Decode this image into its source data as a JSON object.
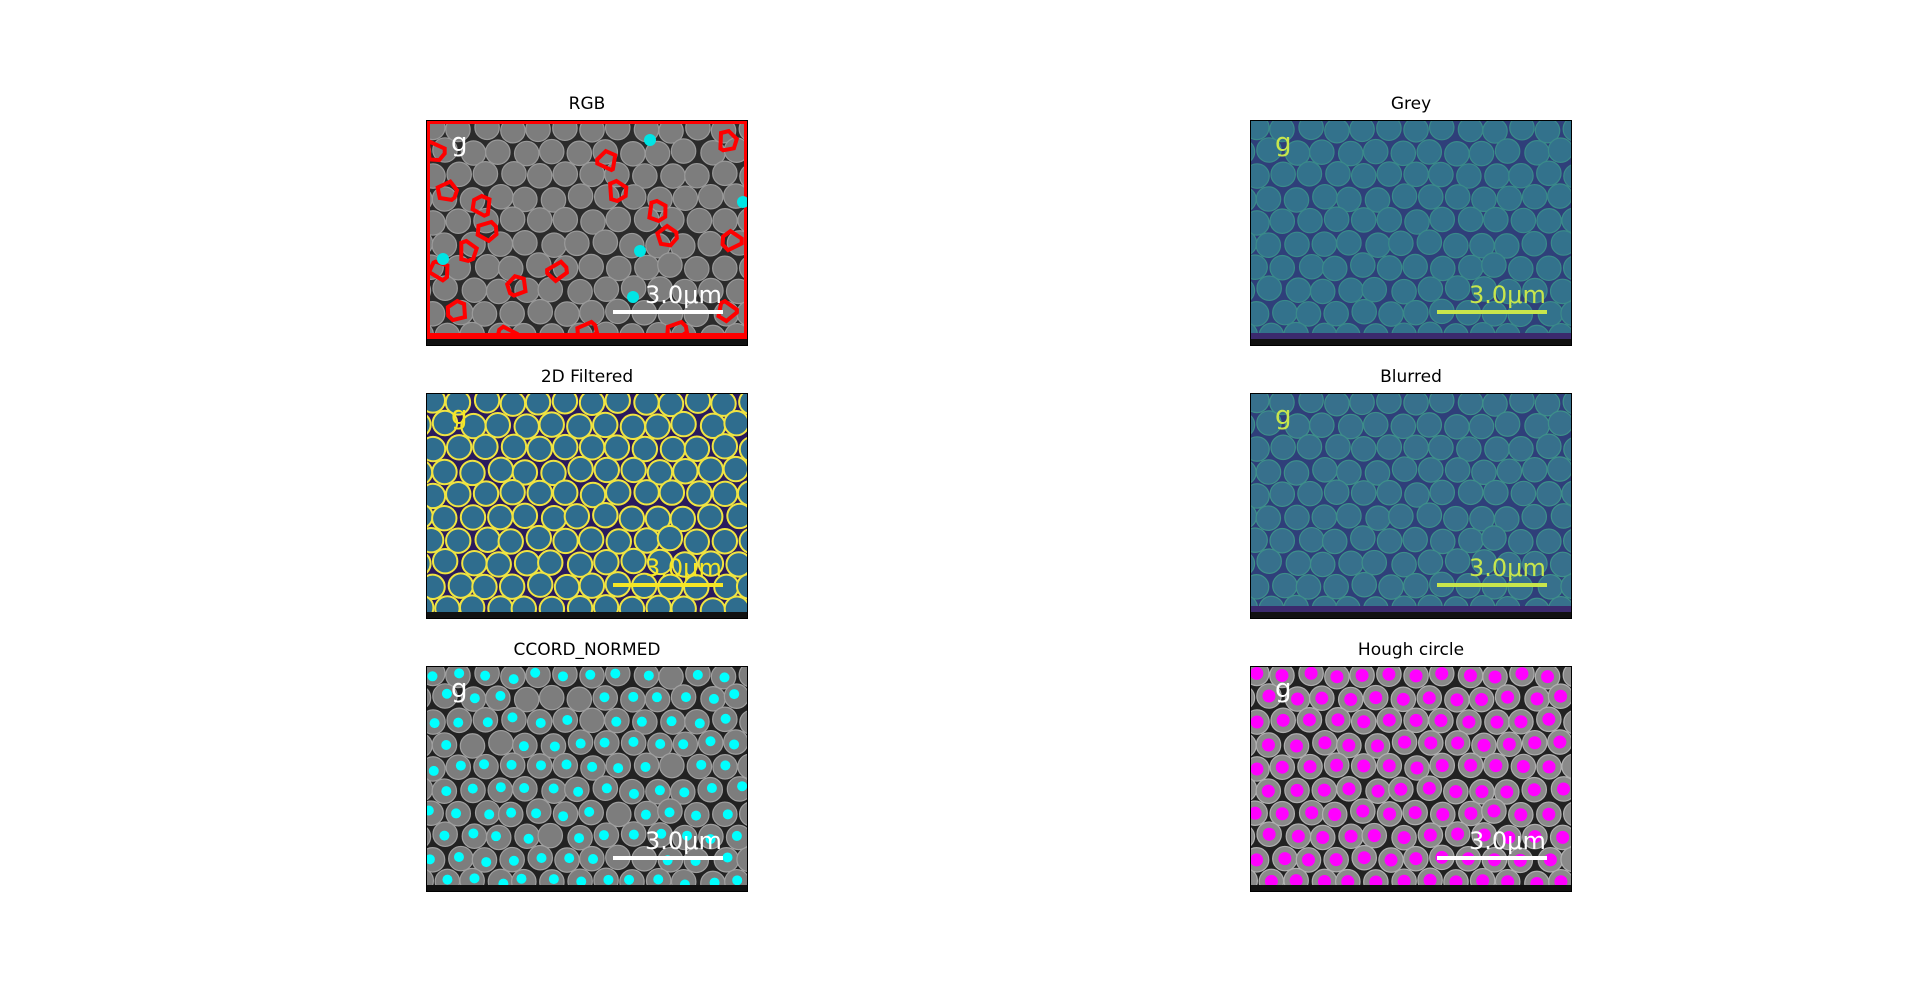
{
  "figure": {
    "panels": [
      {
        "id": "rgb",
        "title": "RGB",
        "style": "rgb"
      },
      {
        "id": "grey",
        "title": "Grey",
        "style": "viridis"
      },
      {
        "id": "filtered",
        "title": "2D Filtered",
        "style": "filtered"
      },
      {
        "id": "blurred",
        "title": "Blurred",
        "style": "blurred"
      },
      {
        "id": "ccord",
        "title": "CCORD_NORMED",
        "style": "ccord"
      },
      {
        "id": "hough",
        "title": "Hough circle",
        "style": "hough"
      }
    ],
    "image_text": {
      "corner_letter": "g",
      "scale_label": "3.0μm"
    },
    "colors": {
      "rgb_background": "#2b2b2b",
      "rgb_particle": "#7d7d7d",
      "rgb_gap_fill": "#ff0000",
      "rgb_markers": "#00e5e5",
      "viridis_background": "#3b4d8a",
      "viridis_particle": "#33728c",
      "viridis_edge": "#2aa88c",
      "viridis_text": "#c8e64c",
      "filtered_background": "#2a1a5e",
      "filtered_particle": "#2f6d8e",
      "filtered_edge": "#f0e442",
      "ccord_markers": "#00ffff",
      "hough_markers": "#ff00ff",
      "scale_bar_white": "#ffffff",
      "scale_bar_yellow": "#f5e626"
    }
  }
}
